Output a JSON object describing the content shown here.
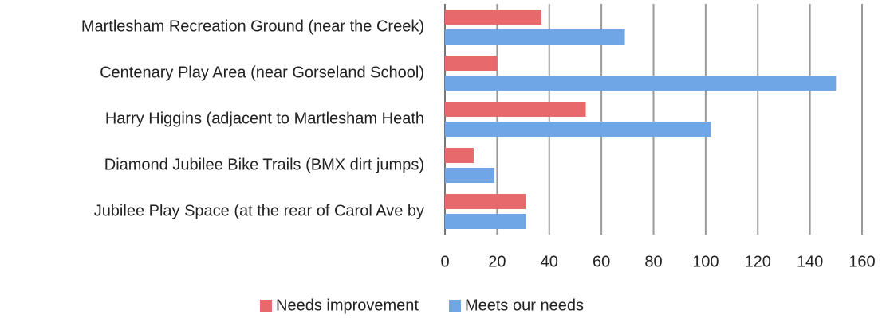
{
  "chart_data": {
    "type": "hbar",
    "categories": [
      "Martlesham Recreation Ground (near the Creek)",
      "Centenary Play Area (near Gorseland School)",
      "Harry Higgins (adjacent to Martlesham Heath",
      "Diamond Jubilee Bike Trails (BMX dirt jumps)",
      "Jubilee Play Space (at the rear of Carol Ave by"
    ],
    "series": [
      {
        "name": "Needs improvement",
        "color": "#e8696b",
        "values": [
          37,
          20,
          54,
          11,
          31
        ]
      },
      {
        "name": "Meets our needs",
        "color": "#6ea6e6",
        "values": [
          69,
          150,
          102,
          19,
          31
        ]
      }
    ],
    "xlim": [
      0,
      160
    ],
    "xticks": [
      0,
      20,
      40,
      60,
      80,
      100,
      120,
      140,
      160
    ],
    "grid": true,
    "legend": "bottom"
  }
}
